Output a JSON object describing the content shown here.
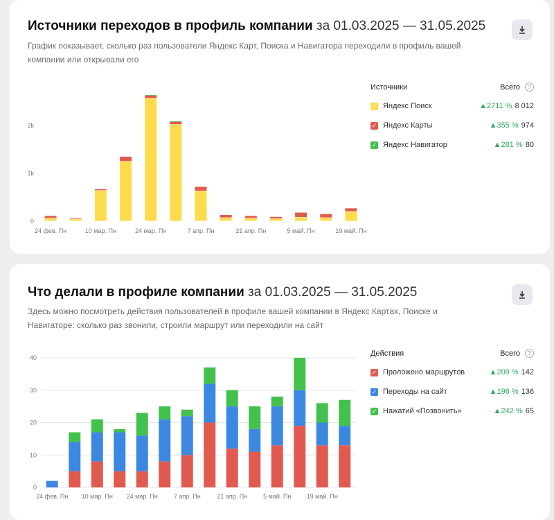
{
  "card1": {
    "title": "Источники переходов в профиль компании",
    "period": "за 01.03.2025 — 31.05.2025",
    "description": "График показывает, сколько раз пользователи Яндекс Карт, Поиска и Навигатора переходили в профиль вашей компании или открывали его",
    "download_icon": "download-icon",
    "legend": {
      "header": "Источники",
      "total_header": "Всего",
      "help_icon": "?",
      "items": [
        {
          "name": "Яндекс Поиск",
          "change": "▲2711 %",
          "total": "8 012",
          "color": "#fddb4a"
        },
        {
          "name": "Яндекс Карты",
          "change": "▲355 %",
          "total": "974",
          "color": "#e05a4f"
        },
        {
          "name": "Яндекс Навигатор",
          "change": "▲281 %",
          "total": "80",
          "color": "#43c14d"
        }
      ]
    }
  },
  "card2": {
    "title": "Что делали в профиле компании",
    "period": "за 01.03.2025 — 31.05.2025",
    "description": "Здесь можно посмотреть действия пользователей в профиле вашей компании в Яндекс Картах, Поиске и Навигаторе: сколько раз звонили, строили маршрут или переходили на сайт",
    "download_icon": "download-icon",
    "legend": {
      "header": "Действия",
      "total_header": "Всего",
      "help_icon": "?",
      "items": [
        {
          "name": "Проложено маршрутов",
          "change": "▲209 %",
          "total": "142",
          "color": "#e05a4f"
        },
        {
          "name": "Переходы на сайт",
          "change": "▲196 %",
          "total": "136",
          "color": "#3c88e0"
        },
        {
          "name": "Нажатий «Позвонить»",
          "change": "▲242 %",
          "total": "65",
          "color": "#43c14d"
        }
      ]
    }
  },
  "chart_data": [
    {
      "type": "bar",
      "stacked": true,
      "ylim": [
        0,
        2800
      ],
      "yticks": [
        0,
        1000,
        2000
      ],
      "ytick_labels": [
        "0",
        "1k",
        "2k"
      ],
      "grid": false,
      "legend_position": "right",
      "xtick_labels": [
        "24 фев. Пн",
        "10 мар. Пн",
        "24 мар. Пн",
        "7 апр. Пн",
        "21 апр. Пн",
        "5 май. Пн",
        "19 май. Пн"
      ],
      "series": [
        {
          "name": "Яндекс Поиск",
          "color": "#fddb4a",
          "values": [
            60,
            40,
            640,
            1250,
            2570,
            2020,
            630,
            70,
            60,
            50,
            80,
            70,
            200
          ]
        },
        {
          "name": "Яндекс Карты",
          "color": "#e05a4f",
          "values": [
            50,
            20,
            30,
            100,
            60,
            60,
            90,
            60,
            50,
            40,
            100,
            80,
            70
          ]
        },
        {
          "name": "Яндекс Навигатор",
          "color": "#43c14d",
          "values": [
            0,
            0,
            0,
            0,
            10,
            10,
            0,
            0,
            0,
            0,
            0,
            0,
            0
          ]
        }
      ]
    },
    {
      "type": "bar",
      "stacked": true,
      "ylim": [
        0,
        40
      ],
      "yticks": [
        0,
        10,
        20,
        30,
        40
      ],
      "ytick_labels": [
        "0",
        "10",
        "20",
        "30",
        "40"
      ],
      "grid": true,
      "legend_position": "right",
      "xtick_labels": [
        "24 фев. Пн",
        "10 мар. Пн",
        "24 мар. Пн",
        "7 апр. Пн",
        "21 апр. Пн",
        "5 май. Пн",
        "19 май. Пн"
      ],
      "series": [
        {
          "name": "Проложено маршрутов",
          "color": "#e05a4f",
          "values": [
            0,
            5,
            8,
            5,
            5,
            8,
            10,
            20,
            12,
            11,
            13,
            19,
            13,
            13
          ]
        },
        {
          "name": "Переходы на сайт",
          "color": "#3c88e0",
          "values": [
            2,
            9,
            9,
            12,
            11,
            13,
            12,
            12,
            13,
            7,
            12,
            11,
            7,
            6
          ]
        },
        {
          "name": "Нажатий «Позвонить»",
          "color": "#43c14d",
          "values": [
            0,
            3,
            4,
            1,
            7,
            4,
            2,
            5,
            5,
            7,
            3,
            10,
            6,
            8
          ]
        }
      ]
    }
  ]
}
